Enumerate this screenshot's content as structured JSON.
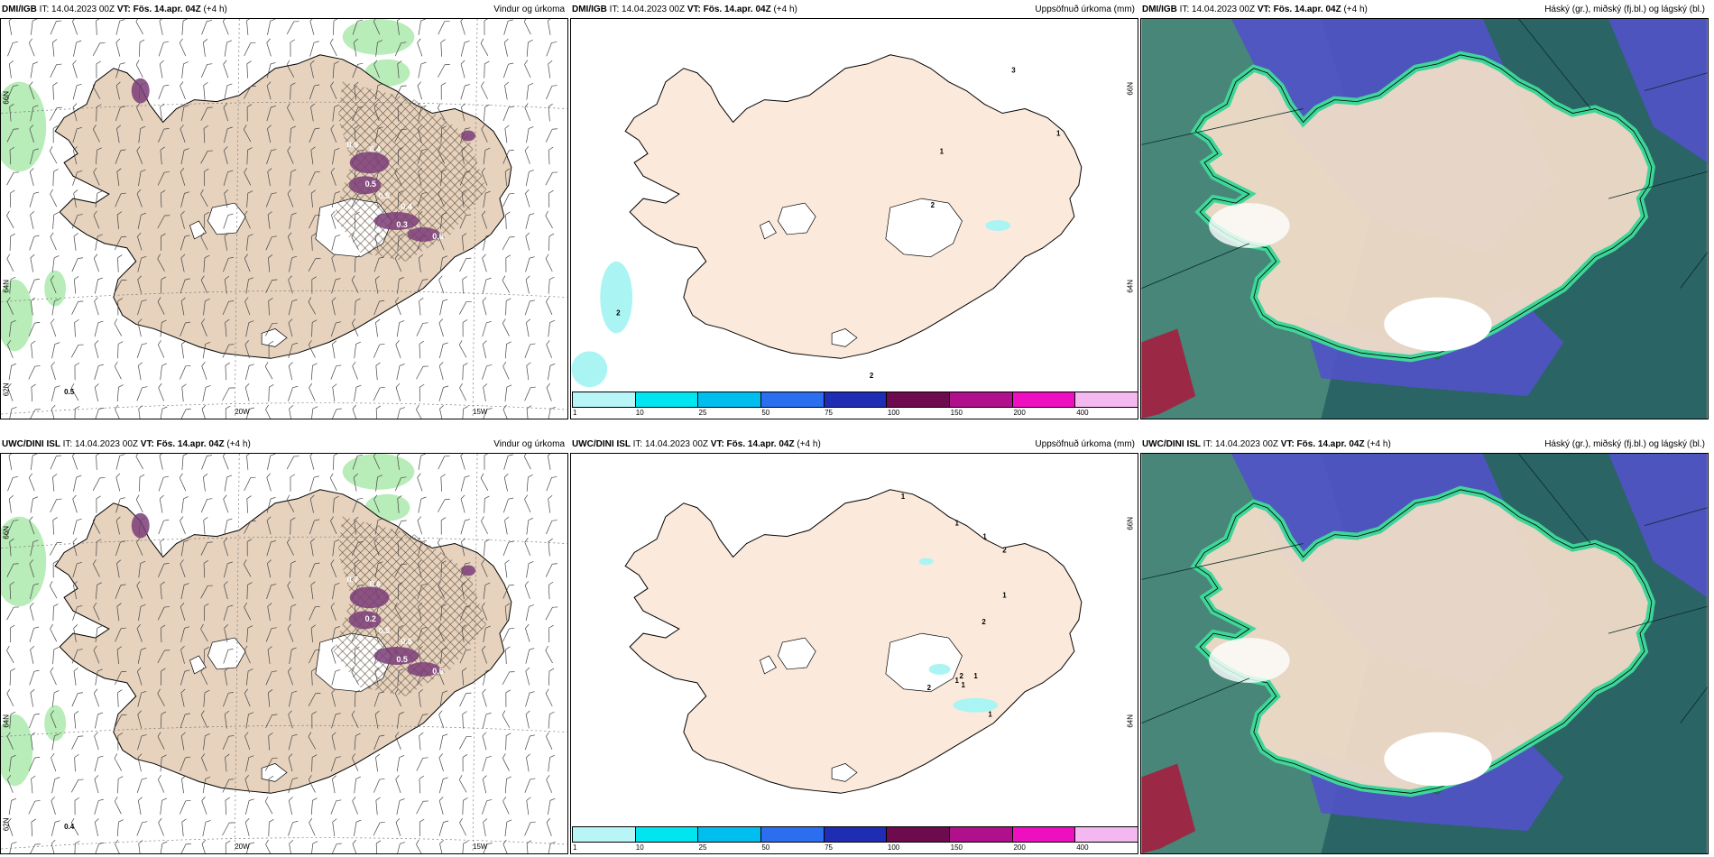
{
  "panels": [
    {
      "source": "DMI/IGB",
      "it_label": "IT:",
      "it_value": "14.04.2023 00Z",
      "vt_label": "VT: Fös. 14.apr. 04Z",
      "lead": "(+4 h)",
      "title": "Vindur og úrkoma",
      "kind": "wind",
      "lon_labels": [
        "20W",
        "15W"
      ],
      "lat_labels": [
        "66N",
        "64N",
        "62N"
      ],
      "precip_values": [
        "0.5",
        "0.4",
        "0.5",
        "0.4",
        "0.3",
        "0.6",
        "0.5",
        "0.5"
      ]
    },
    {
      "source": "DMI/IGB",
      "it_label": "IT:",
      "it_value": "14.04.2023 00Z",
      "vt_label": "VT: Fös. 14.apr. 04Z",
      "lead": "(+4 h)",
      "title": "Uppsöfnuð úrkoma (mm)",
      "kind": "accum",
      "lat_labels": [
        "66N",
        "64N"
      ],
      "accum_values": [
        "2",
        "3",
        "1",
        "1",
        "2",
        "2"
      ]
    },
    {
      "source": "DMI/IGB",
      "it_label": "IT:",
      "it_value": "14.04.2023 00Z",
      "vt_label": "VT: Fös. 14.apr. 04Z",
      "lead": "(+4 h)",
      "title": "Háský (gr.), miðský (fj.bl.) og lágský (bl.)",
      "kind": "cloud"
    },
    {
      "source": "UWC/DINI ISL",
      "it_label": "IT:",
      "it_value": "14.04.2023 00Z",
      "vt_label": "VT: Fös. 14.apr. 04Z",
      "lead": "(+4 h)",
      "title": "Vindur og úrkoma",
      "kind": "wind",
      "lon_labels": [
        "20W",
        "15W"
      ],
      "lat_labels": [
        "66N",
        "64N",
        "62N"
      ],
      "precip_values": [
        "0.7",
        "0.6",
        "0.2",
        "0.5",
        "0.5",
        "0.6",
        "0.4",
        "0.5"
      ]
    },
    {
      "source": "UWC/DINI ISL",
      "it_label": "IT:",
      "it_value": "14.04.2023 00Z",
      "vt_label": "VT: Fös. 14.apr. 04Z",
      "lead": "(+4 h)",
      "title": "Uppsöfnuð úrkoma (mm)",
      "kind": "accum",
      "lat_labels": [
        "66N",
        "64N"
      ],
      "accum_values": [
        "1",
        "2",
        "1",
        "1",
        "1",
        "2",
        "1",
        "2",
        "1",
        "1",
        "2",
        "1"
      ]
    },
    {
      "source": "UWC/DINI ISL",
      "it_label": "IT:",
      "it_value": "14.04.2023 00Z",
      "vt_label": "VT: Fös. 14.apr. 04Z",
      "lead": "(+4 h)",
      "title": "Háský (gr.), miðský (fj.bl.) og lágský (bl.)",
      "kind": "cloud"
    }
  ],
  "colorbar": {
    "ticks": [
      "1",
      "10",
      "25",
      "50",
      "75",
      "100",
      "150",
      "200",
      "400"
    ],
    "colors": [
      "#b7f5f7",
      "#00e5ef",
      "#00bfee",
      "#2c6ef0",
      "#1f2db4",
      "#6e0b4f",
      "#b0108c",
      "#ee10c0",
      "#f3b8f0"
    ]
  },
  "colors": {
    "land": "#e6d2bd",
    "land_accum": "#fbeadb",
    "ocean": "#ffffff",
    "light_precip": "#b8ecb8",
    "heavy_precip": "#7a3d78",
    "hatch": "#5a4a3a",
    "cloud_high": "#2a6464",
    "cloud_mid": "#5252c8",
    "cloud_low": "#3fdc9a"
  }
}
